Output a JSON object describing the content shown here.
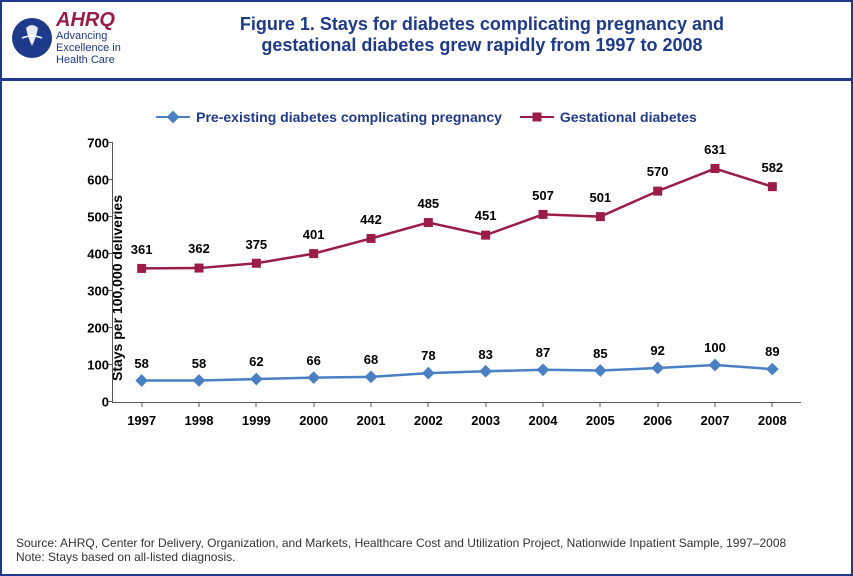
{
  "header": {
    "ahrq": "AHRQ",
    "tagline1": "Advancing",
    "tagline2": "Excellence in",
    "tagline3": "Health Care",
    "title_line1": "Figure 1. Stays for diabetes complicating pregnancy and",
    "title_line2": "gestational diabetes grew rapidly from 1997 to 2008"
  },
  "chart": {
    "type": "line",
    "yaxis_label": "Stays per 100,000 deliveries",
    "ylim": [
      0,
      700
    ],
    "ytick_step": 100,
    "yticks": [
      "0",
      "100",
      "200",
      "300",
      "400",
      "500",
      "600",
      "700"
    ],
    "categories": [
      "1997",
      "1998",
      "1999",
      "2000",
      "2001",
      "2002",
      "2003",
      "2004",
      "2005",
      "2006",
      "2007",
      "2008"
    ],
    "series": [
      {
        "name": "Pre-existing diabetes complicating pregnancy",
        "color": "#4a7fc4",
        "marker": "diamond",
        "line_width": 2.5,
        "marker_size": 9,
        "values": [
          58,
          58,
          62,
          66,
          68,
          78,
          83,
          87,
          85,
          92,
          100,
          89
        ],
        "label_color": "#4a7fc4",
        "label_offset_y": -10
      },
      {
        "name": "Gestational diabetes",
        "color": "#9b1c47",
        "marker": "square",
        "line_width": 2.5,
        "marker_size": 9,
        "values": [
          361,
          362,
          375,
          401,
          442,
          485,
          451,
          507,
          501,
          570,
          631,
          582
        ],
        "label_color": "#9b1c47",
        "label_offset_y": -12
      }
    ],
    "label_fontsize": 13,
    "tick_fontsize": 13,
    "background_color": "#ffffff",
    "axis_color": "#555555"
  },
  "footer": {
    "source": "Source: AHRQ, Center for Delivery, Organization, and Markets, Healthcare Cost and Utilization Project, Nationwide Inpatient Sample, 1997–2008",
    "note": "Note: Stays based on all-listed diagnosis."
  }
}
